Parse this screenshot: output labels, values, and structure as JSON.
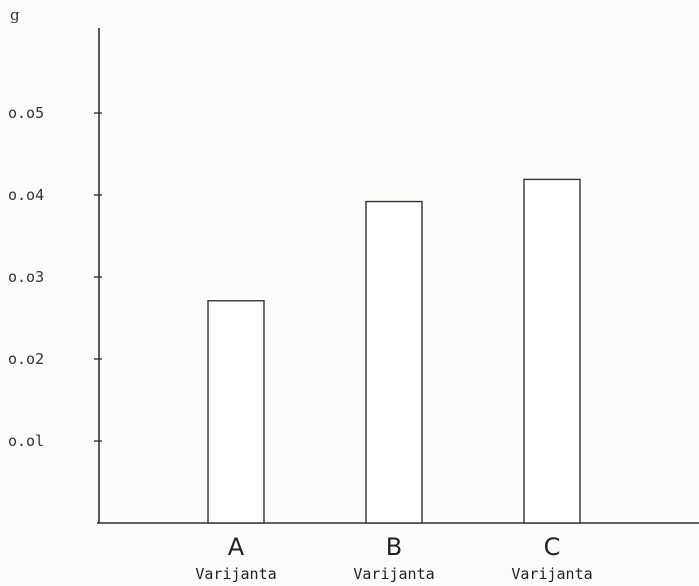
{
  "chart_data": {
    "type": "bar",
    "categories": [
      "A",
      "B",
      "C"
    ],
    "category_sublabel": "Varijanta",
    "values": [
      0.0271,
      0.0392,
      0.0419
    ],
    "ylabel": "g",
    "ylim": [
      0,
      0.06
    ],
    "yticks": [
      {
        "value": 0.01,
        "label": "o.ol"
      },
      {
        "value": 0.02,
        "label": "o.o2"
      },
      {
        "value": 0.03,
        "label": "o.o3"
      },
      {
        "value": 0.04,
        "label": "o.o4"
      },
      {
        "value": 0.05,
        "label": "o.o5"
      }
    ],
    "grid": false,
    "colors": {
      "bar_fill": "#ffffff",
      "bar_stroke": "#333333",
      "axis": "#333333"
    }
  }
}
